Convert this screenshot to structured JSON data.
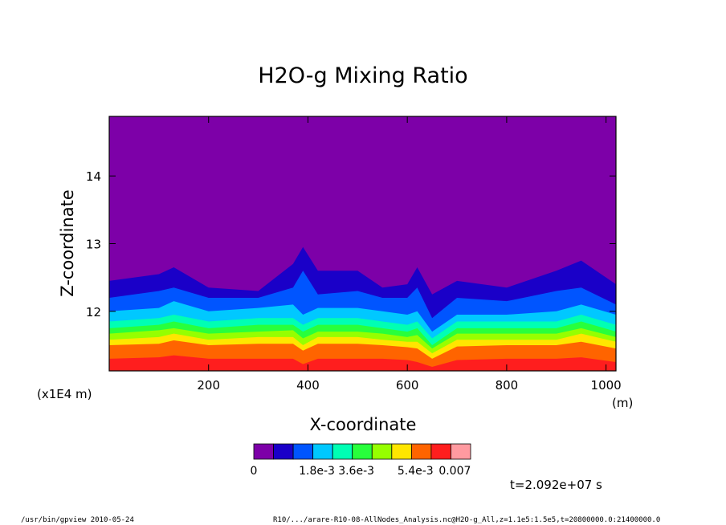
{
  "chart_data": {
    "type": "heatmap",
    "title": "H2O-g Mixing Ratio",
    "xlabel": "X-coordinate",
    "ylabel": "Z-coordinate",
    "x_unit_label": "(m)",
    "y_unit_label": "(x1E4 m)",
    "xlim": [
      0,
      1020
    ],
    "ylim": [
      11.12,
      14.88
    ],
    "x_ticks": [
      200,
      400,
      600,
      800,
      1000
    ],
    "y_ticks": [
      12,
      13,
      14
    ],
    "x_tick_labels": [
      "200",
      "400",
      "600",
      "800",
      "1000"
    ],
    "y_tick_labels": [
      "12",
      "13",
      "14"
    ],
    "colorbar": {
      "levels": [
        0,
        0.0007,
        0.0014,
        0.0021,
        0.0028,
        0.0035,
        0.0042,
        0.0049,
        0.0056,
        0.0063,
        0.007
      ],
      "labels": [
        "0",
        "1.8e-3",
        "3.6e-3",
        "5.4e-3",
        "0.007"
      ],
      "colors": [
        "#7d00a8",
        "#1a00c8",
        "#0055ff",
        "#00c8ff",
        "#00ffb4",
        "#28ff3c",
        "#96ff00",
        "#ffe600",
        "#ff6400",
        "#ff1e1e",
        "#ff9aa0"
      ]
    },
    "contour_bands_z": {
      "x": [
        0,
        100,
        130,
        200,
        300,
        370,
        390,
        420,
        500,
        550,
        600,
        620,
        650,
        700,
        800,
        900,
        950,
        1020
      ],
      "band_lower_z": {
        "level_1": [
          12.45,
          12.55,
          12.65,
          12.35,
          12.3,
          12.7,
          12.95,
          12.6,
          12.6,
          12.35,
          12.4,
          12.65,
          12.25,
          12.45,
          12.35,
          12.6,
          12.75,
          12.4
        ],
        "level_2": [
          12.2,
          12.3,
          12.35,
          12.2,
          12.2,
          12.35,
          12.6,
          12.25,
          12.3,
          12.2,
          12.2,
          12.35,
          11.9,
          12.2,
          12.15,
          12.3,
          12.35,
          12.1
        ],
        "level_3": [
          12.0,
          12.05,
          12.15,
          12.0,
          12.05,
          12.1,
          11.95,
          12.05,
          12.05,
          12.0,
          11.95,
          12.0,
          11.7,
          11.95,
          11.95,
          12.0,
          12.1,
          11.95
        ],
        "level_4": [
          11.85,
          11.9,
          11.95,
          11.85,
          11.9,
          11.9,
          11.8,
          11.9,
          11.9,
          11.85,
          11.8,
          11.85,
          11.6,
          11.85,
          11.85,
          11.85,
          11.95,
          11.8
        ],
        "level_5": [
          11.75,
          11.8,
          11.85,
          11.75,
          11.8,
          11.8,
          11.7,
          11.8,
          11.8,
          11.75,
          11.7,
          11.75,
          11.5,
          11.75,
          11.75,
          11.75,
          11.85,
          11.7
        ],
        "level_6": [
          11.67,
          11.72,
          11.75,
          11.67,
          11.7,
          11.72,
          11.6,
          11.7,
          11.7,
          11.67,
          11.62,
          11.65,
          11.45,
          11.67,
          11.67,
          11.67,
          11.75,
          11.62
        ],
        "level_7": [
          11.58,
          11.62,
          11.67,
          11.58,
          11.62,
          11.62,
          11.5,
          11.62,
          11.62,
          11.58,
          11.55,
          11.55,
          11.38,
          11.58,
          11.58,
          11.58,
          11.67,
          11.55
        ],
        "level_8": [
          11.5,
          11.52,
          11.57,
          11.5,
          11.52,
          11.52,
          11.42,
          11.52,
          11.52,
          11.5,
          11.47,
          11.45,
          11.3,
          11.48,
          11.5,
          11.5,
          11.55,
          11.45
        ],
        "level_9": [
          11.3,
          11.32,
          11.35,
          11.3,
          11.3,
          11.3,
          11.22,
          11.3,
          11.3,
          11.3,
          11.28,
          11.25,
          11.18,
          11.28,
          11.3,
          11.3,
          11.32,
          11.25
        ]
      }
    }
  },
  "time_label": "t=2.092e+07 s",
  "footer": {
    "left": "/usr/bin/gpview   2010-05-24",
    "right": "R10/.../arare-R10-08-AllNodes_Analysis.nc@H2O-g_All,z=1.1e5:1.5e5,t=20800000.0:21400000.0"
  }
}
